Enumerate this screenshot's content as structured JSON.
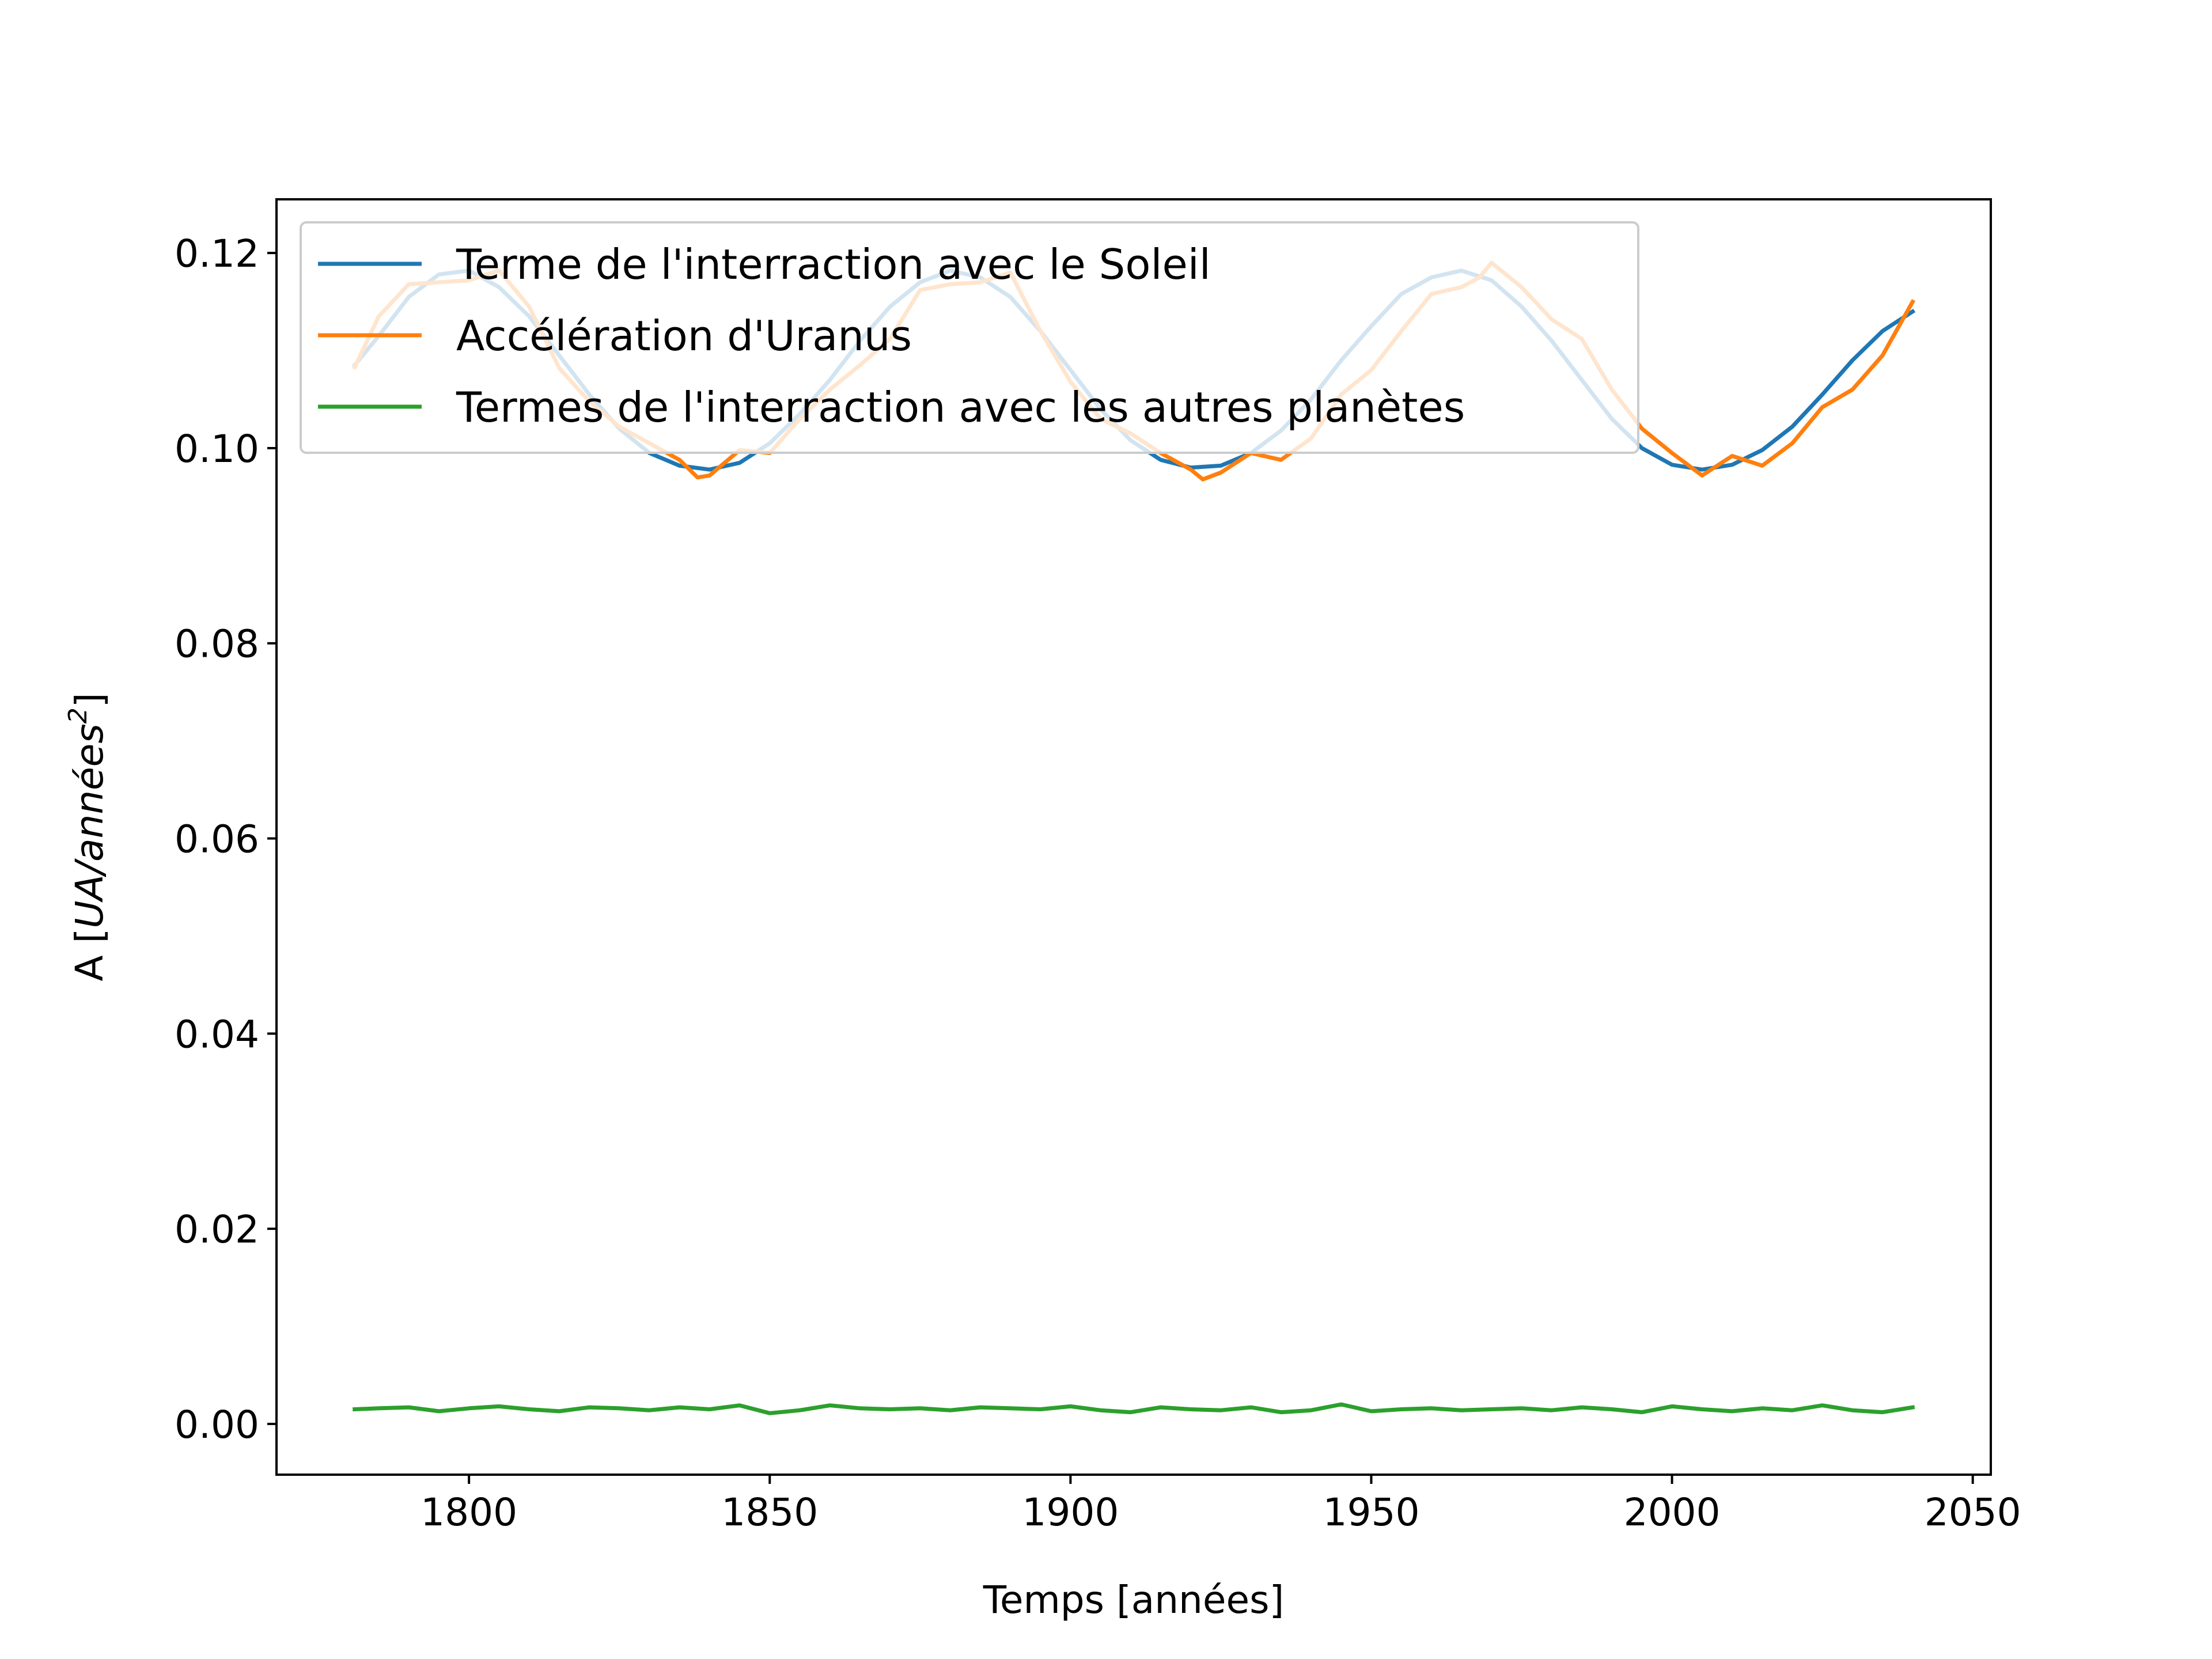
{
  "chart_data": {
    "type": "line",
    "title": "",
    "xlabel": "Temps [années]",
    "ylabel": {
      "prefix": "A [",
      "unit_italic": "UA/années",
      "superscript": "2",
      "suffix": "]"
    },
    "xlim": [
      1768,
      2053
    ],
    "ylim": [
      -0.0052,
      0.1255
    ],
    "xticks": [
      {
        "value": 1800,
        "label": "1800"
      },
      {
        "value": 1850,
        "label": "1850"
      },
      {
        "value": 1900,
        "label": "1900"
      },
      {
        "value": 1950,
        "label": "1950"
      },
      {
        "value": 2000,
        "label": "2000"
      },
      {
        "value": 2050,
        "label": "2050"
      }
    ],
    "yticks": [
      {
        "value": 0.0,
        "label": "0.00"
      },
      {
        "value": 0.02,
        "label": "0.02"
      },
      {
        "value": 0.04,
        "label": "0.04"
      },
      {
        "value": 0.06,
        "label": "0.06"
      },
      {
        "value": 0.08,
        "label": "0.08"
      },
      {
        "value": 0.1,
        "label": "0.10"
      },
      {
        "value": 0.12,
        "label": "0.12"
      }
    ],
    "grid": false,
    "legend_position": "upper-left",
    "series": [
      {
        "name": "Terme de l'interraction avec le Soleil",
        "color": "#1f77b4",
        "x": [
          1781,
          1785,
          1790,
          1795,
          1800,
          1805,
          1810,
          1815,
          1820,
          1825,
          1830,
          1835,
          1840,
          1845,
          1850,
          1855,
          1860,
          1865,
          1870,
          1875,
          1880,
          1885,
          1890,
          1895,
          1900,
          1905,
          1910,
          1915,
          1920,
          1925,
          1930,
          1935,
          1940,
          1945,
          1950,
          1955,
          1960,
          1965,
          1970,
          1975,
          1980,
          1985,
          1990,
          1995,
          2000,
          2005,
          2010,
          2015,
          2020,
          2025,
          2030,
          2035,
          2040
        ],
        "y": [
          0.1085,
          0.1115,
          0.1155,
          0.1178,
          0.1182,
          0.1165,
          0.1135,
          0.1095,
          0.1055,
          0.102,
          0.0995,
          0.0982,
          0.0978,
          0.0985,
          0.1005,
          0.1035,
          0.107,
          0.111,
          0.1145,
          0.117,
          0.1182,
          0.1175,
          0.1155,
          0.112,
          0.108,
          0.104,
          0.1008,
          0.0988,
          0.098,
          0.0982,
          0.0995,
          0.1018,
          0.105,
          0.109,
          0.1125,
          0.1158,
          0.1175,
          0.1182,
          0.1172,
          0.1145,
          0.111,
          0.107,
          0.103,
          0.1,
          0.0983,
          0.0978,
          0.0983,
          0.0998,
          0.1022,
          0.1055,
          0.109,
          0.112,
          0.114
        ]
      },
      {
        "name": "Accélération d'Uranus",
        "color": "#ff7f0e",
        "x": [
          1781,
          1785,
          1790,
          1795,
          1800,
          1805,
          1810,
          1815,
          1820,
          1825,
          1830,
          1835,
          1838,
          1840,
          1845,
          1850,
          1855,
          1860,
          1865,
          1870,
          1875,
          1880,
          1885,
          1890,
          1895,
          1900,
          1905,
          1910,
          1915,
          1920,
          1922,
          1925,
          1930,
          1935,
          1940,
          1945,
          1950,
          1955,
          1960,
          1965,
          1968,
          1970,
          1975,
          1980,
          1985,
          1990,
          1995,
          2000,
          2005,
          2010,
          2015,
          2020,
          2025,
          2030,
          2035,
          2040
        ],
        "y": [
          0.1083,
          0.1135,
          0.1168,
          0.117,
          0.1172,
          0.1182,
          0.1145,
          0.1082,
          0.1048,
          0.1022,
          0.1005,
          0.0988,
          0.097,
          0.0972,
          0.0998,
          0.0995,
          0.103,
          0.106,
          0.1085,
          0.1112,
          0.1162,
          0.1168,
          0.117,
          0.118,
          0.112,
          0.1068,
          0.103,
          0.1015,
          0.0995,
          0.0978,
          0.0968,
          0.0975,
          0.0995,
          0.0988,
          0.101,
          0.1055,
          0.108,
          0.112,
          0.1158,
          0.1165,
          0.1175,
          0.119,
          0.1165,
          0.1132,
          0.1112,
          0.106,
          0.102,
          0.0995,
          0.0972,
          0.0992,
          0.0982,
          0.1005,
          0.1042,
          0.106,
          0.1095,
          0.115
        ]
      },
      {
        "name": "Termes de l'interraction avec les autres planètes",
        "color": "#2ca02c",
        "x": [
          1781,
          1785,
          1790,
          1795,
          1800,
          1805,
          1810,
          1815,
          1820,
          1825,
          1830,
          1835,
          1840,
          1845,
          1850,
          1855,
          1860,
          1865,
          1870,
          1875,
          1880,
          1885,
          1890,
          1895,
          1900,
          1905,
          1910,
          1915,
          1920,
          1925,
          1930,
          1935,
          1940,
          1945,
          1950,
          1955,
          1960,
          1965,
          1970,
          1975,
          1980,
          1985,
          1990,
          1995,
          2000,
          2005,
          2010,
          2015,
          2020,
          2025,
          2030,
          2035,
          2040
        ],
        "y": [
          0.0015,
          0.0016,
          0.0017,
          0.0013,
          0.0016,
          0.0018,
          0.0015,
          0.0013,
          0.0017,
          0.0016,
          0.0014,
          0.0017,
          0.0015,
          0.0019,
          0.0011,
          0.0014,
          0.0019,
          0.0016,
          0.0015,
          0.0016,
          0.0014,
          0.0017,
          0.0016,
          0.0015,
          0.0018,
          0.0014,
          0.0012,
          0.0017,
          0.0015,
          0.0014,
          0.0017,
          0.0012,
          0.0014,
          0.002,
          0.0013,
          0.0015,
          0.0016,
          0.0014,
          0.0015,
          0.0016,
          0.0014,
          0.0017,
          0.0015,
          0.0012,
          0.0018,
          0.0015,
          0.0013,
          0.0016,
          0.0014,
          0.0019,
          0.0014,
          0.0012,
          0.0017
        ]
      }
    ]
  }
}
